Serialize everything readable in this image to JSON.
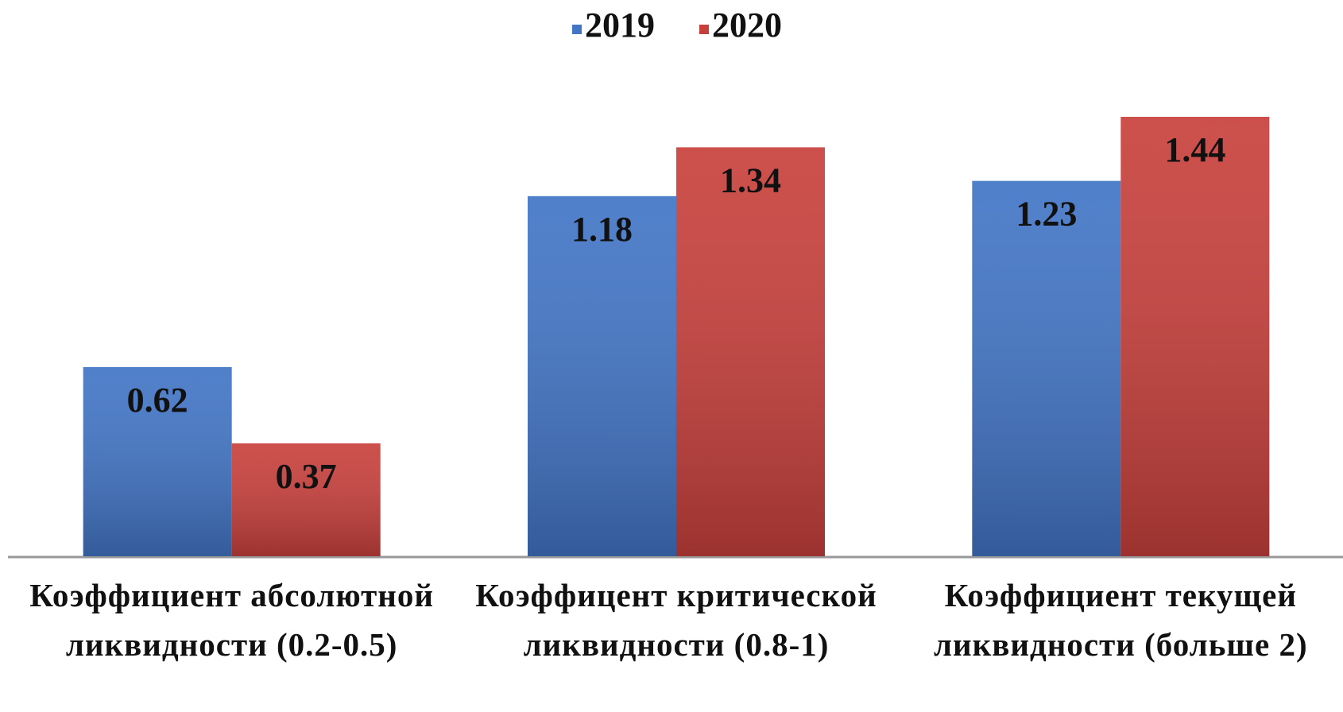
{
  "chart_data": {
    "type": "bar",
    "categories": [
      "Коэффициент абсолютной ликвидности (0.2-0.5)",
      "Коэффицент критической ликвидности (0.8-1)",
      "Коэффициент текущей ликвидности (больше 2)"
    ],
    "series": [
      {
        "name": "2019",
        "color": "#4275c6",
        "values": [
          0.62,
          1.18,
          1.23
        ]
      },
      {
        "name": "2020",
        "color": "#c8403c",
        "values": [
          0.37,
          1.34,
          1.44
        ]
      }
    ],
    "legend": "top"
  }
}
